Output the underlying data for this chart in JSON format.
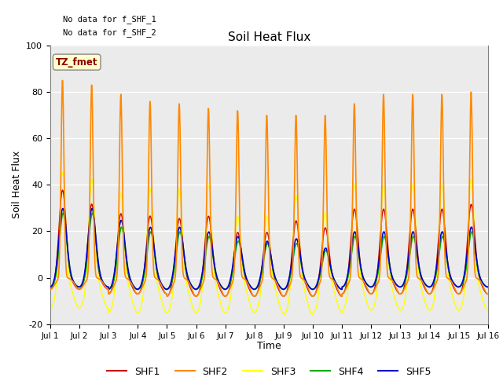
{
  "title": "Soil Heat Flux",
  "ylabel": "Soil Heat Flux",
  "xlabel": "Time",
  "ylim": [
    -20,
    100
  ],
  "xlim": [
    0,
    15
  ],
  "xtick_labels": [
    "Jul 1",
    "Jul 2",
    "Jul 3",
    "Jul 4",
    "Jul 5",
    "Jul 6",
    "Jul 7",
    "Jul 8",
    "Jul 9",
    "Jul 10",
    "Jul 11",
    "Jul 12",
    "Jul 13",
    "Jul 14",
    "Jul 15",
    "Jul 16"
  ],
  "ytick_labels": [
    "-20",
    "0",
    "20",
    "40",
    "60",
    "80",
    "100"
  ],
  "ytick_values": [
    -20,
    0,
    20,
    40,
    60,
    80,
    100
  ],
  "colors": [
    "#cc0000",
    "#ff8800",
    "#ffff00",
    "#00aa00",
    "#0000cc"
  ],
  "annotation1": "No data for f_SHF_1",
  "annotation2": "No data for f_SHF_2",
  "tz_label": "TZ_fmet",
  "background_color": "#ebebeb",
  "fig_background": "#ffffff",
  "peaks_shf2": [
    85,
    83,
    79,
    76,
    75,
    73,
    72,
    70,
    70,
    70,
    75,
    79,
    79,
    79,
    80
  ],
  "peaks_shf3": [
    47,
    44,
    38,
    40,
    40,
    42,
    28,
    28,
    37,
    30,
    42,
    42,
    42,
    42,
    44
  ],
  "peaks_shf1": [
    38,
    32,
    28,
    27,
    26,
    27,
    20,
    20,
    25,
    22,
    30,
    30,
    30,
    30,
    32
  ],
  "peaks_shf4": [
    28,
    28,
    22,
    20,
    20,
    18,
    16,
    15,
    15,
    12,
    18,
    18,
    18,
    18,
    20
  ],
  "peaks_shf5": [
    30,
    30,
    25,
    22,
    22,
    20,
    18,
    16,
    17,
    13,
    20,
    20,
    20,
    20,
    22
  ],
  "night_shf1": [
    -5,
    -5,
    -7,
    -7,
    -8,
    -8,
    -8,
    -8,
    -8,
    -8,
    -7,
    -7,
    -7,
    -7,
    -7
  ],
  "night_shf2": [
    -5,
    -5,
    -7,
    -7,
    -8,
    -8,
    -8,
    -8,
    -8,
    -8,
    -7,
    -7,
    -7,
    -7,
    -7
  ],
  "night_shf3": [
    -13,
    -13,
    -15,
    -15,
    -15,
    -15,
    -15,
    -15,
    -16,
    -15,
    -14,
    -14,
    -14,
    -14,
    -14
  ],
  "night_shf4": [
    -4,
    -4,
    -5,
    -5,
    -5,
    -5,
    -5,
    -5,
    -5,
    -5,
    -4,
    -4,
    -4,
    -4,
    -4
  ],
  "night_shf5": [
    -4,
    -4,
    -5,
    -5,
    -5,
    -5,
    -5,
    -5,
    -5,
    -5,
    -4,
    -4,
    -4,
    -4,
    -4
  ]
}
